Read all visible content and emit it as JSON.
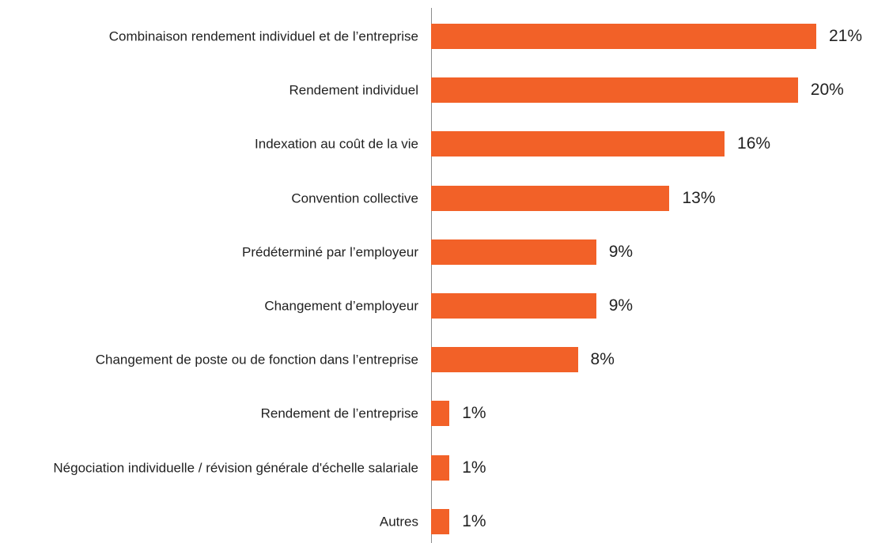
{
  "chart_data": {
    "type": "bar",
    "orientation": "horizontal",
    "color": "#f26128",
    "categories": [
      "Combinaison rendement individuel et de l’entreprise",
      "Rendement individuel",
      "Indexation au coût de la vie",
      "Convention collective",
      "Prédéterminé par l’employeur",
      "Changement d’employeur",
      "Changement de poste ou de fonction dans l’entreprise",
      "Rendement de l’entreprise",
      "Négociation individuelle / révision générale d'échelle salariale",
      "Autres"
    ],
    "values": [
      21,
      20,
      16,
      13,
      9,
      9,
      8,
      1,
      1,
      1
    ],
    "value_labels": [
      "21%",
      "20%",
      "16%",
      "13%",
      "9%",
      "9%",
      "8%",
      "1%",
      "1%",
      "1%"
    ]
  }
}
